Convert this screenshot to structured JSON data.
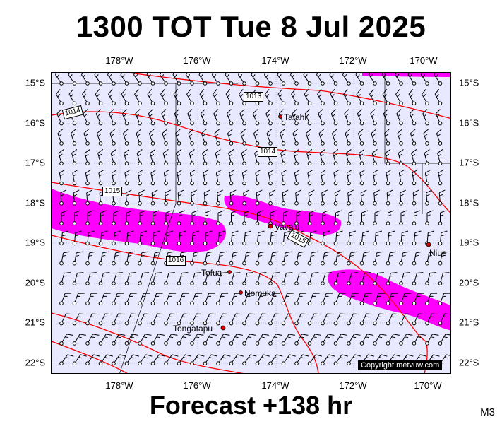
{
  "title": "1300 TOT Tue 8 Jul 2025",
  "forecast_label": "Forecast +138 hr",
  "model_code": "M3",
  "copyright": "Copyright metvuw.com",
  "colors": {
    "ocean": "#e8e8ff",
    "isobar": "#ff0000",
    "rain": "#ff00ff",
    "land": "#000000"
  },
  "axes": {
    "longitude_ticks": [
      "178°W",
      "176°W",
      "174°W",
      "172°W",
      "170°W"
    ],
    "latitude_ticks": [
      "15°S",
      "16°S",
      "17°S",
      "18°S",
      "19°S",
      "20°S",
      "21°S",
      "22°S"
    ]
  },
  "isobar_labels": [
    "1013",
    "1014",
    "1014",
    "1015",
    "1015",
    "1016"
  ],
  "places": [
    "Tafahi",
    "Vava'u",
    "Niue",
    "Tofua",
    "Nomuka",
    "Tongatapu"
  ],
  "wind_barbs": "grid of wind barbs over map"
}
